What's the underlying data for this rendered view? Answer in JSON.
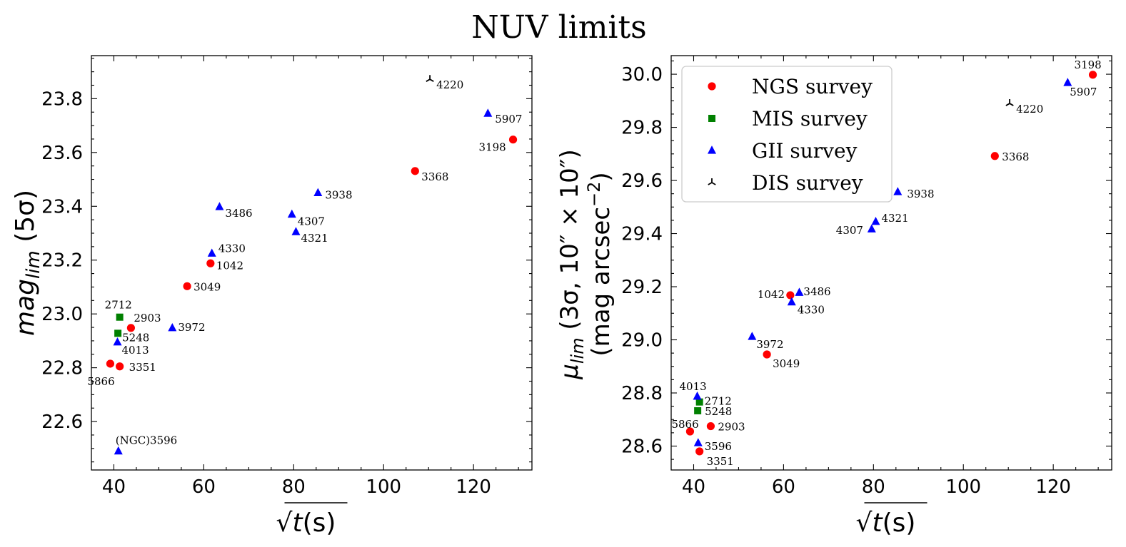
{
  "figure_title": "NUV limits",
  "chart_data": [
    {
      "type": "scatter",
      "xlabel": "√t(s)",
      "ylabel": "mag_lim (5σ)",
      "xlim": [
        35,
        133
      ],
      "ylim": [
        22.42,
        23.96
      ],
      "xticks": [
        40,
        60,
        80,
        100,
        120
      ],
      "yticks": [
        22.6,
        22.8,
        23.0,
        23.2,
        23.4,
        23.6,
        23.8
      ],
      "legend": null,
      "series": [
        {
          "survey": "NGS",
          "color": "#ff0000",
          "marker": "circle",
          "points": [
            {
              "x": 39.2,
              "y": 22.815,
              "label": "5866"
            },
            {
              "x": 41.3,
              "y": 22.805,
              "label": "3351"
            },
            {
              "x": 43.8,
              "y": 22.948,
              "label": "2903"
            },
            {
              "x": 56.3,
              "y": 23.103,
              "label": "3049"
            },
            {
              "x": 61.5,
              "y": 23.188,
              "label": "1042"
            },
            {
              "x": 107.0,
              "y": 23.531,
              "label": "3368"
            },
            {
              "x": 128.8,
              "y": 23.648,
              "label": "3198"
            }
          ]
        },
        {
          "survey": "MIS",
          "color": "#008000",
          "marker": "square",
          "points": [
            {
              "x": 41.3,
              "y": 22.988,
              "label": "2712"
            },
            {
              "x": 40.9,
              "y": 22.928,
              "label": "5248"
            }
          ]
        },
        {
          "survey": "GII",
          "color": "#0000ff",
          "marker": "triangle",
          "points": [
            {
              "x": 40.8,
              "y": 22.895,
              "label": "4013"
            },
            {
              "x": 41.0,
              "y": 22.49,
              "label": "(NGC)3596"
            },
            {
              "x": 53.0,
              "y": 22.948,
              "label": "3972"
            },
            {
              "x": 61.8,
              "y": 23.225,
              "label": "4330"
            },
            {
              "x": 63.5,
              "y": 23.398,
              "label": "3486"
            },
            {
              "x": 79.6,
              "y": 23.37,
              "label": "4307"
            },
            {
              "x": 80.5,
              "y": 23.305,
              "label": "4321"
            },
            {
              "x": 85.4,
              "y": 23.45,
              "label": "3938"
            },
            {
              "x": 123.2,
              "y": 23.745,
              "label": "5907"
            }
          ]
        },
        {
          "survey": "DIS",
          "color": "#000000",
          "marker": "tri_down",
          "points": [
            {
              "x": 110.3,
              "y": 23.872,
              "label": "4220"
            }
          ]
        }
      ]
    },
    {
      "type": "scatter",
      "xlabel": "√t(s)",
      "ylabel_line1": "μ_lim (3σ, 10″ × 10″)",
      "ylabel_line2": "(mag arcsec⁻²)",
      "xlim": [
        35,
        133
      ],
      "ylim": [
        28.51,
        30.07
      ],
      "xticks": [
        40,
        60,
        80,
        100,
        120
      ],
      "yticks": [
        28.6,
        28.8,
        29.0,
        29.2,
        29.4,
        29.6,
        29.8,
        30.0
      ],
      "legend": {
        "position": "upper-left",
        "entries": [
          "NGS survey",
          "MIS survey",
          "GII survey",
          "DIS survey"
        ]
      },
      "series": [
        {
          "survey": "NGS",
          "color": "#ff0000",
          "marker": "circle",
          "points": [
            {
              "x": 39.2,
              "y": 28.655,
              "label": "5866"
            },
            {
              "x": 41.3,
              "y": 28.58,
              "label": "3351"
            },
            {
              "x": 43.8,
              "y": 28.675,
              "label": "2903"
            },
            {
              "x": 56.3,
              "y": 28.945,
              "label": "3049"
            },
            {
              "x": 61.5,
              "y": 29.168,
              "label": "1042"
            },
            {
              "x": 107.0,
              "y": 29.692,
              "label": "3368"
            },
            {
              "x": 128.8,
              "y": 29.998,
              "label": "3198"
            }
          ]
        },
        {
          "survey": "MIS",
          "color": "#008000",
          "marker": "square",
          "points": [
            {
              "x": 41.3,
              "y": 28.766,
              "label": "2712"
            },
            {
              "x": 40.9,
              "y": 28.733,
              "label": "5248"
            }
          ]
        },
        {
          "survey": "GII",
          "color": "#0000ff",
          "marker": "triangle",
          "points": [
            {
              "x": 40.8,
              "y": 28.787,
              "label": "4013"
            },
            {
              "x": 41.0,
              "y": 28.612,
              "label": "3596"
            },
            {
              "x": 53.0,
              "y": 29.012,
              "label": "3972"
            },
            {
              "x": 61.8,
              "y": 29.142,
              "label": "4330"
            },
            {
              "x": 63.5,
              "y": 29.178,
              "label": "3486"
            },
            {
              "x": 79.6,
              "y": 29.417,
              "label": "4307"
            },
            {
              "x": 80.5,
              "y": 29.445,
              "label": "4321"
            },
            {
              "x": 85.4,
              "y": 29.557,
              "label": "3938"
            },
            {
              "x": 123.2,
              "y": 29.968,
              "label": "5907"
            }
          ]
        },
        {
          "survey": "DIS",
          "color": "#000000",
          "marker": "tri_down",
          "points": [
            {
              "x": 110.3,
              "y": 29.89,
              "label": "4220"
            }
          ]
        }
      ]
    }
  ]
}
